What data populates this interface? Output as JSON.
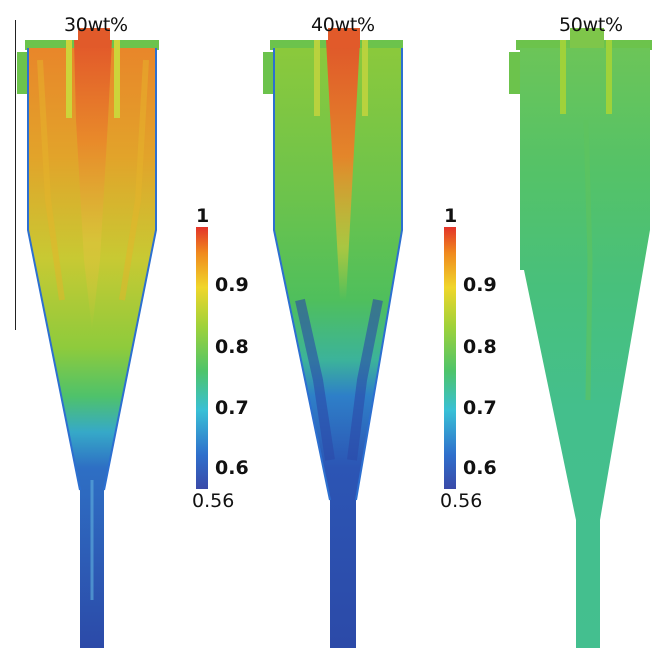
{
  "panels": [
    {
      "title": "30wt%"
    },
    {
      "title": "40wt%"
    },
    {
      "title": "50wt%"
    }
  ],
  "colorbar": {
    "max_label": "1",
    "min_label": "0.56",
    "ticks": [
      "0.9",
      "0.8",
      "0.7",
      "0.6"
    ],
    "stops": [
      "#3a4aa8",
      "#2f7fd0",
      "#39c0d6",
      "#4ec46a",
      "#9fd23a",
      "#f0d62a",
      "#f08a1e",
      "#e3342a"
    ]
  }
}
